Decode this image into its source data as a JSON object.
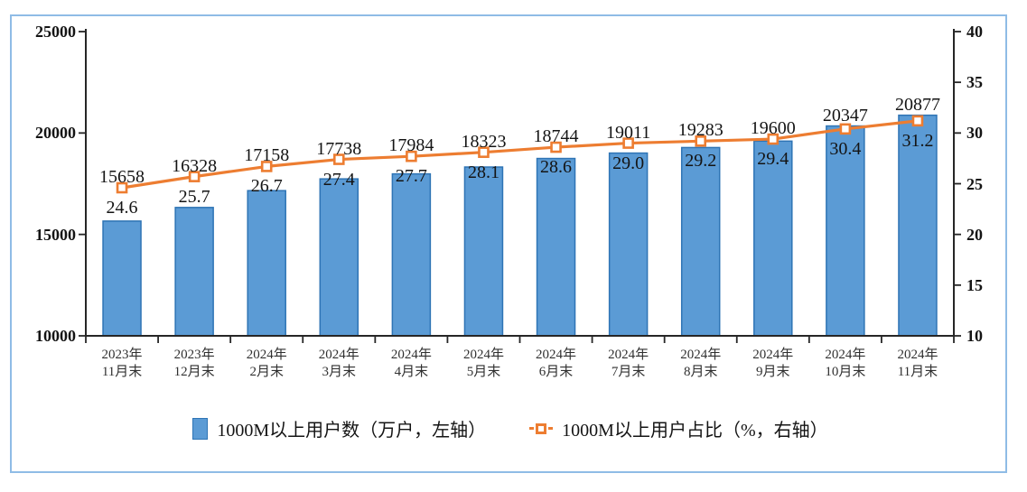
{
  "chart_data": {
    "type": "bar",
    "subtype": "bar-line-combo",
    "categories": [
      {
        "l1": "2023年",
        "l2": "11月末"
      },
      {
        "l1": "2023年",
        "l2": "12月末"
      },
      {
        "l1": "2024年",
        "l2": "2月末"
      },
      {
        "l1": "2024年",
        "l2": "3月末"
      },
      {
        "l1": "2024年",
        "l2": "4月末"
      },
      {
        "l1": "2024年",
        "l2": "5月末"
      },
      {
        "l1": "2024年",
        "l2": "6月末"
      },
      {
        "l1": "2024年",
        "l2": "7月末"
      },
      {
        "l1": "2024年",
        "l2": "8月末"
      },
      {
        "l1": "2024年",
        "l2": "9月末"
      },
      {
        "l1": "2024年",
        "l2": "10月末"
      },
      {
        "l1": "2024年",
        "l2": "11月末"
      }
    ],
    "series": [
      {
        "name": "1000M以上用户数（万户，左轴）",
        "type": "bar",
        "axis": "left",
        "values": [
          15658,
          16328,
          17158,
          17738,
          17984,
          18323,
          18744,
          19011,
          19283,
          19600,
          20347,
          20877
        ]
      },
      {
        "name": "1000M以上用户占比（%，右轴）",
        "type": "line",
        "axis": "right",
        "values": [
          24.6,
          25.7,
          26.7,
          27.4,
          27.7,
          28.1,
          28.6,
          29.0,
          29.2,
          29.4,
          30.4,
          31.2
        ],
        "label_decimals": 1
      }
    ],
    "left_axis": {
      "min": 10000,
      "max": 25000,
      "step": 5000,
      "ticks": [
        10000,
        15000,
        20000,
        25000
      ]
    },
    "right_axis": {
      "min": 10,
      "max": 40,
      "step": 5,
      "ticks": [
        10,
        15,
        20,
        25,
        30,
        35,
        40
      ]
    },
    "title": "",
    "legend_position": "bottom",
    "grid": false
  },
  "colors": {
    "bar_fill": "#5b9bd5",
    "bar_border": "#2e74b5",
    "line": "#ed7d31",
    "marker_fill": "#ffffff",
    "axis": "#262626",
    "frame_border": "#8fbce6",
    "label_text": "#141414",
    "category_text": "#303030"
  }
}
